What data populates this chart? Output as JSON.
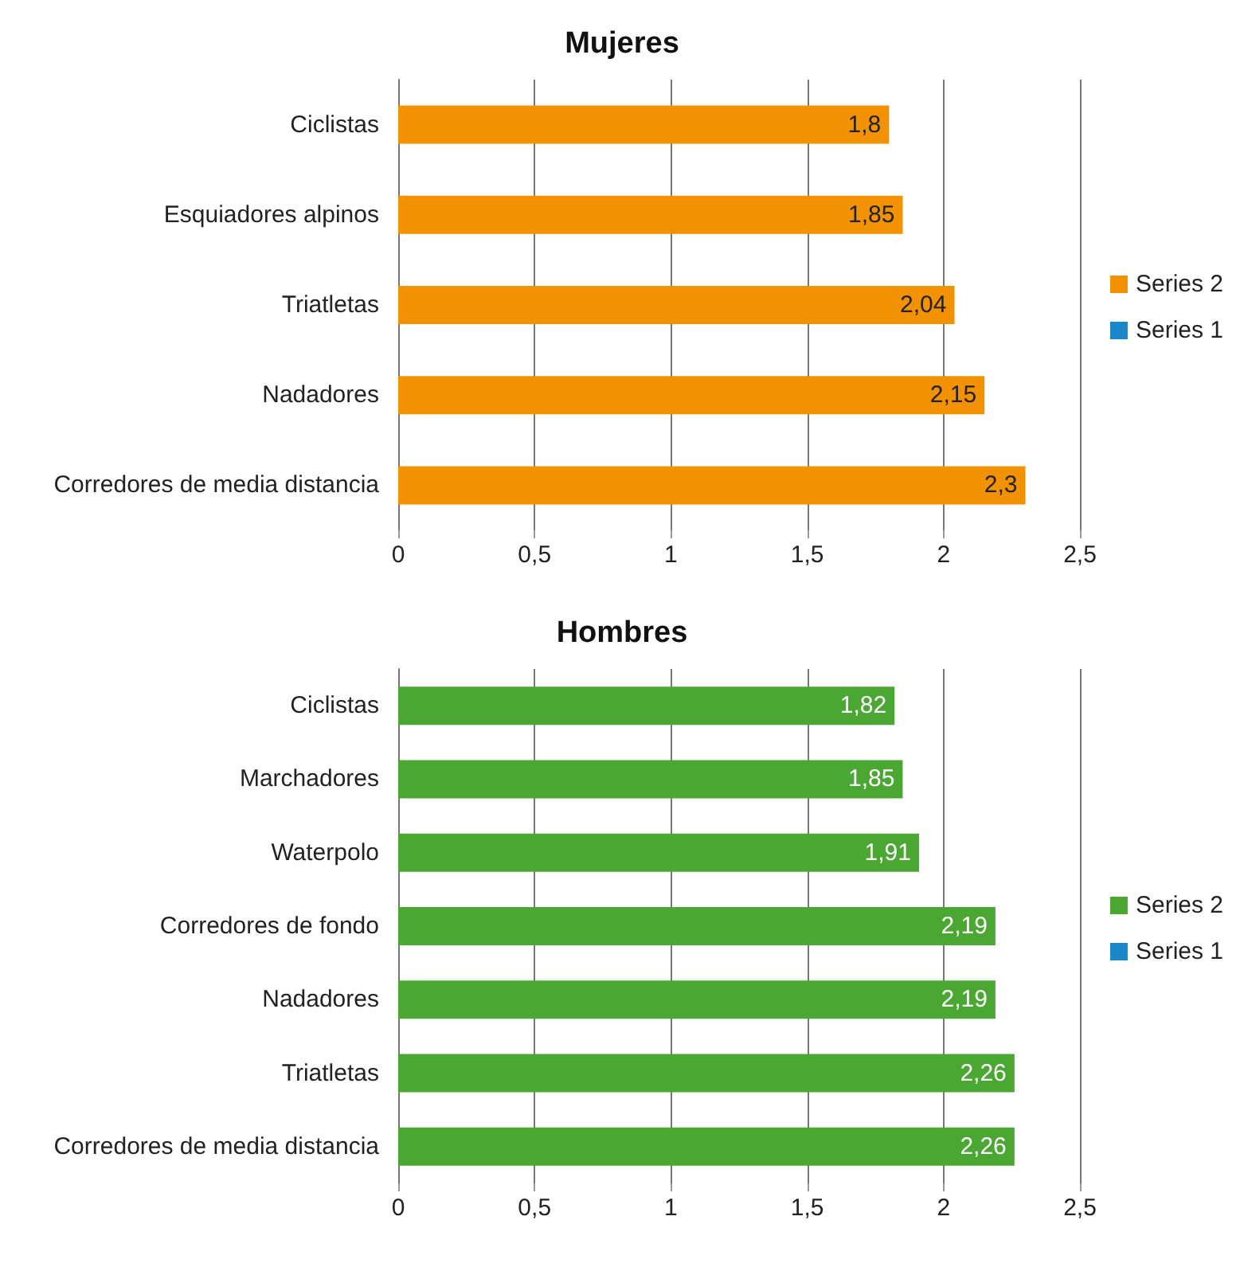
{
  "chart_data": [
    {
      "type": "bar",
      "title": "Mujeres",
      "orientation": "horizontal",
      "categories": [
        "Ciclistas",
        "Esquiadores alpinos",
        "Triatletas",
        "Nadadores",
        "Corredores de media distancia"
      ],
      "series": [
        {
          "name": "Series 2",
          "color": "#f39200",
          "values": [
            1.8,
            1.85,
            2.04,
            2.15,
            2.3
          ],
          "value_labels": [
            "1,8",
            "1,85",
            "2,04",
            "2,15",
            "2,3"
          ]
        },
        {
          "name": "Series 1",
          "color": "#1a87c9",
          "values": [
            null,
            null,
            null,
            null,
            null
          ]
        }
      ],
      "xlim": [
        0,
        2.5
      ],
      "xticks": [
        0,
        {
          "value": 0.5,
          "label": "0,5"
        },
        1,
        {
          "value": 1.5,
          "label": "1,5"
        },
        2,
        {
          "value": 2.5,
          "label": "2,5"
        }
      ],
      "grid": "x",
      "legend": "right"
    },
    {
      "type": "bar",
      "title": "Hombres",
      "orientation": "horizontal",
      "categories": [
        "Ciclistas",
        "Marchadores",
        "Waterpolo",
        "Corredores de fondo",
        "Nadadores",
        "Triatletas",
        "Corredores de media distancia"
      ],
      "series": [
        {
          "name": "Series 2",
          "color": "#4aa832",
          "values": [
            1.82,
            1.85,
            1.91,
            2.19,
            2.19,
            2.26,
            2.26
          ],
          "value_labels": [
            "1,82",
            "1,85",
            "1,91",
            "2,19",
            "2,19",
            "2,26",
            "2,26"
          ]
        },
        {
          "name": "Series 1",
          "color": "#1a87c9",
          "values": [
            null,
            null,
            null,
            null,
            null,
            null,
            null
          ]
        }
      ],
      "xlim": [
        0,
        2.5
      ],
      "xticks": [
        0,
        {
          "value": 0.5,
          "label": "0,5"
        },
        1,
        {
          "value": 1.5,
          "label": "1,5"
        },
        2,
        {
          "value": 2.5,
          "label": "2,5"
        }
      ],
      "grid": "x",
      "legend": "right"
    }
  ]
}
